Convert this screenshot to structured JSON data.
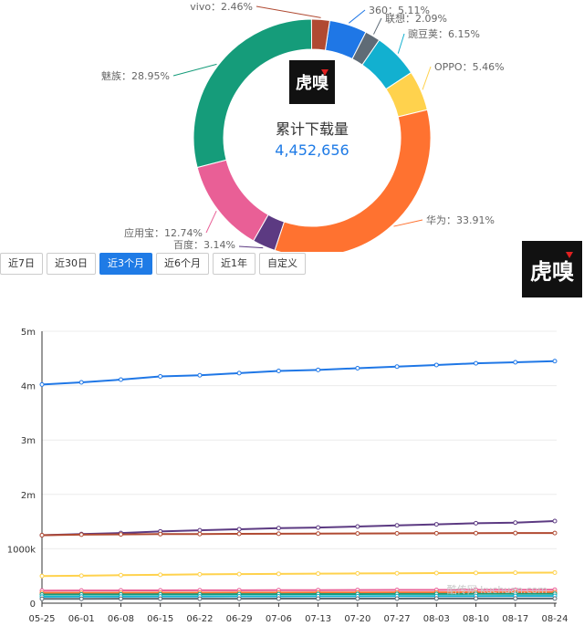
{
  "donut": {
    "center_title": "累计下载量",
    "center_value": "4,452,656",
    "logo_text": "虎嗅",
    "slices": [
      {
        "name": "360",
        "value": 5.11,
        "label": "360：5.11%",
        "color": "#1f77e6"
      },
      {
        "name": "联想",
        "value": 2.09,
        "label": "联想：2.09%",
        "color": "#5f6b76"
      },
      {
        "name": "豌豆荚",
        "value": 6.15,
        "label": "豌豆荚：6.15%",
        "color": "#12b0d0"
      },
      {
        "name": "OPPO",
        "value": 5.46,
        "label": "OPPO：5.46%",
        "color": "#ffd24d"
      },
      {
        "name": "华为",
        "value": 33.91,
        "label": "华为：33.91%",
        "color": "#ff7230"
      },
      {
        "name": "百度",
        "value": 3.14,
        "label": "百度：3.14%",
        "color": "#5c3a82"
      },
      {
        "name": "应用宝",
        "value": 12.74,
        "label": "应用宝：12.74%",
        "color": "#e95f96"
      },
      {
        "name": "魅族",
        "value": 28.95,
        "label": "魅族：28.95%",
        "color": "#159c7a"
      },
      {
        "name": "vivo",
        "value": 2.46,
        "label": "vivo：2.46%",
        "color": "#b04a32"
      }
    ]
  },
  "logo_right_text": "虎嗅",
  "tabs": [
    {
      "label": "近7日",
      "active": false
    },
    {
      "label": "近30日",
      "active": false
    },
    {
      "label": "近3个月",
      "active": true
    },
    {
      "label": "近6个月",
      "active": false
    },
    {
      "label": "近1年",
      "active": false
    },
    {
      "label": "自定义",
      "active": false
    }
  ],
  "watermark": "酷传网 kuchuan.com",
  "chart_data": {
    "type": "line",
    "x_ticks": [
      "05-25",
      "06-01",
      "06-08",
      "06-15",
      "06-22",
      "06-29",
      "07-06",
      "07-13",
      "07-20",
      "07-27",
      "08-03",
      "08-10",
      "08-17",
      "08-24"
    ],
    "y_ticks": [
      "0",
      "1000k",
      "2m",
      "3m",
      "4m",
      "5m"
    ],
    "ylim": [
      0,
      5000000
    ],
    "grid": true,
    "series": [
      {
        "color": "#1f77e6",
        "values": [
          4020000,
          4060000,
          4110000,
          4170000,
          4190000,
          4230000,
          4270000,
          4290000,
          4320000,
          4350000,
          4380000,
          4410000,
          4430000,
          4450000
        ]
      },
      {
        "color": "#5c3a82",
        "values": [
          1250000,
          1270000,
          1290000,
          1320000,
          1340000,
          1360000,
          1380000,
          1390000,
          1410000,
          1430000,
          1450000,
          1470000,
          1480000,
          1510000
        ]
      },
      {
        "color": "#b04a32",
        "values": [
          1250000,
          1260000,
          1265000,
          1270000,
          1272000,
          1275000,
          1278000,
          1280000,
          1282000,
          1284000,
          1286000,
          1288000,
          1289000,
          1290000
        ]
      },
      {
        "color": "#ffd24d",
        "values": [
          500000,
          505000,
          515000,
          522000,
          530000,
          535000,
          540000,
          544000,
          547000,
          550000,
          553000,
          556000,
          560000,
          563000
        ]
      },
      {
        "color": "#e95f96",
        "values": [
          230000,
          232000,
          234000,
          235000,
          236000,
          238000,
          239000,
          240000,
          242000,
          243000,
          244000,
          245000,
          246000,
          248000
        ]
      },
      {
        "color": "#ff7230",
        "values": [
          190000,
          191000,
          192000,
          193000,
          194000,
          195000,
          196000,
          197000,
          198000,
          199000,
          200000,
          201000,
          202000,
          203000
        ]
      },
      {
        "color": "#159c7a",
        "values": [
          160000,
          161000,
          162000,
          163000,
          164000,
          165000,
          166000,
          167000,
          168000,
          169000,
          170000,
          171000,
          172000,
          173000
        ]
      },
      {
        "color": "#12b0d0",
        "values": [
          120000,
          121000,
          122000,
          123000,
          124000,
          125000,
          126000,
          127000,
          128000,
          129000,
          130000,
          131000,
          132000,
          133000
        ]
      },
      {
        "color": "#5f6b76",
        "values": [
          80000,
          80500,
          81000,
          81500,
          82000,
          82500,
          83000,
          83500,
          84000,
          84500,
          85000,
          85500,
          86000,
          86500
        ]
      }
    ]
  }
}
